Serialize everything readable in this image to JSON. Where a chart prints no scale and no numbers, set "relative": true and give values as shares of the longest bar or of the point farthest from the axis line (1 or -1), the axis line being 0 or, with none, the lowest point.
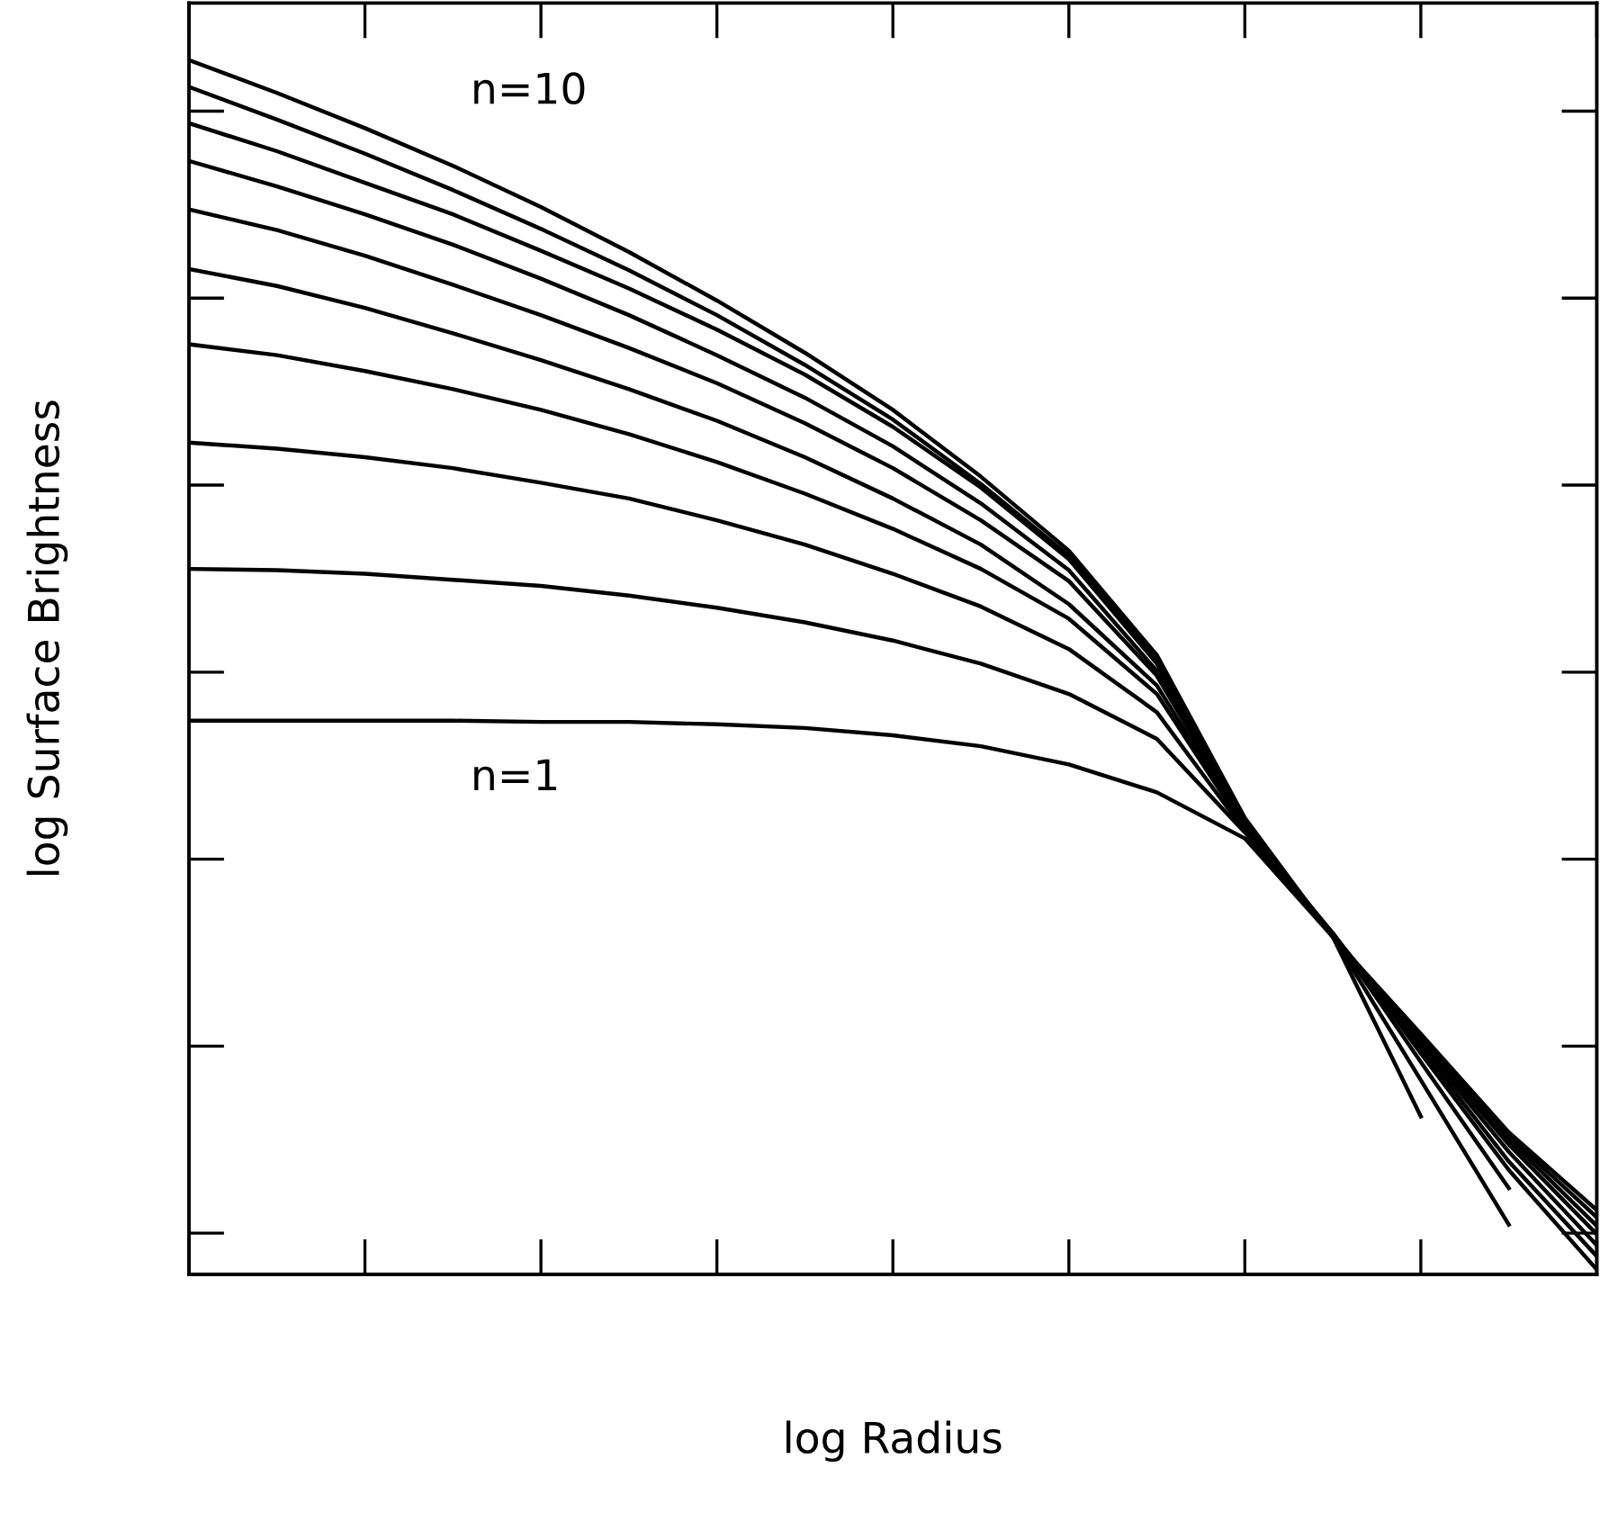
{
  "chart_data": {
    "type": "line",
    "relative": true,
    "xlabel": "log Radius",
    "ylabel": "log Surface Brightness",
    "annotations": [
      "n=10",
      "n=1"
    ],
    "categories": [
      null,
      null,
      null,
      null,
      null,
      null,
      null,
      null,
      null,
      null,
      null,
      null,
      null,
      null,
      null,
      null,
      null
    ],
    "series": [
      {
        "color": "#000000",
        "values": [
          0.456,
          0.456,
          0.456,
          0.456,
          0.455,
          0.455,
          0.453,
          0.45,
          0.444,
          0.435,
          0.42,
          0.397,
          0.359,
          0.278,
          0.13,
          null,
          null
        ]
      },
      {
        "color": "#000000",
        "values": [
          0.581,
          0.58,
          0.577,
          0.572,
          0.567,
          0.559,
          0.549,
          0.537,
          0.522,
          0.503,
          0.478,
          0.441,
          0.364,
          0.278,
          0.16,
          0.041,
          null
        ]
      },
      {
        "color": "#000000",
        "values": [
          0.685,
          0.68,
          0.673,
          0.664,
          0.652,
          0.639,
          0.621,
          0.601,
          0.577,
          0.55,
          0.515,
          0.463,
          0.365,
          0.28,
          0.175,
          0.071,
          null
        ]
      },
      {
        "color": "#000000",
        "values": [
          0.766,
          0.757,
          0.744,
          0.729,
          0.712,
          0.692,
          0.669,
          0.643,
          0.614,
          0.581,
          0.54,
          0.478,
          0.367,
          0.281,
          0.182,
          0.086,
          0.004
        ]
      },
      {
        "color": "#000000",
        "values": [
          0.828,
          0.814,
          0.796,
          0.775,
          0.753,
          0.729,
          0.703,
          0.673,
          0.639,
          0.601,
          0.552,
          0.485,
          0.368,
          0.281,
          0.186,
          0.093,
          0.015
        ]
      },
      {
        "color": "#000000",
        "values": [
          0.877,
          0.86,
          0.839,
          0.815,
          0.79,
          0.763,
          0.734,
          0.701,
          0.664,
          0.621,
          0.571,
          0.493,
          0.37,
          0.28,
          0.189,
          0.101,
          0.024
        ]
      },
      {
        "color": "#000000",
        "values": [
          0.917,
          0.896,
          0.873,
          0.848,
          0.82,
          0.79,
          0.757,
          0.722,
          0.682,
          0.635,
          0.58,
          0.497,
          0.371,
          0.28,
          0.192,
          0.107,
          0.033
        ]
      },
      {
        "color": "#000000",
        "values": [
          0.948,
          0.925,
          0.899,
          0.873,
          0.843,
          0.812,
          0.778,
          0.741,
          0.698,
          0.648,
          0.589,
          0.503,
          0.373,
          0.278,
          0.194,
          0.111,
          0.04
        ]
      },
      {
        "color": "#000000",
        "values": [
          0.978,
          0.951,
          0.923,
          0.893,
          0.861,
          0.827,
          0.79,
          0.749,
          0.704,
          0.651,
          0.592,
          0.506,
          0.374,
          0.278,
          0.195,
          0.114,
          0.047
        ]
      },
      {
        "color": "#000000",
        "values": [
          1.0,
          0.973,
          0.944,
          0.913,
          0.879,
          0.842,
          0.802,
          0.759,
          0.712,
          0.657,
          0.596,
          0.51,
          0.376,
          0.278,
          0.198,
          0.117,
          0.053
        ]
      }
    ],
    "grid": false,
    "marker": "none",
    "line_style": "solid"
  }
}
